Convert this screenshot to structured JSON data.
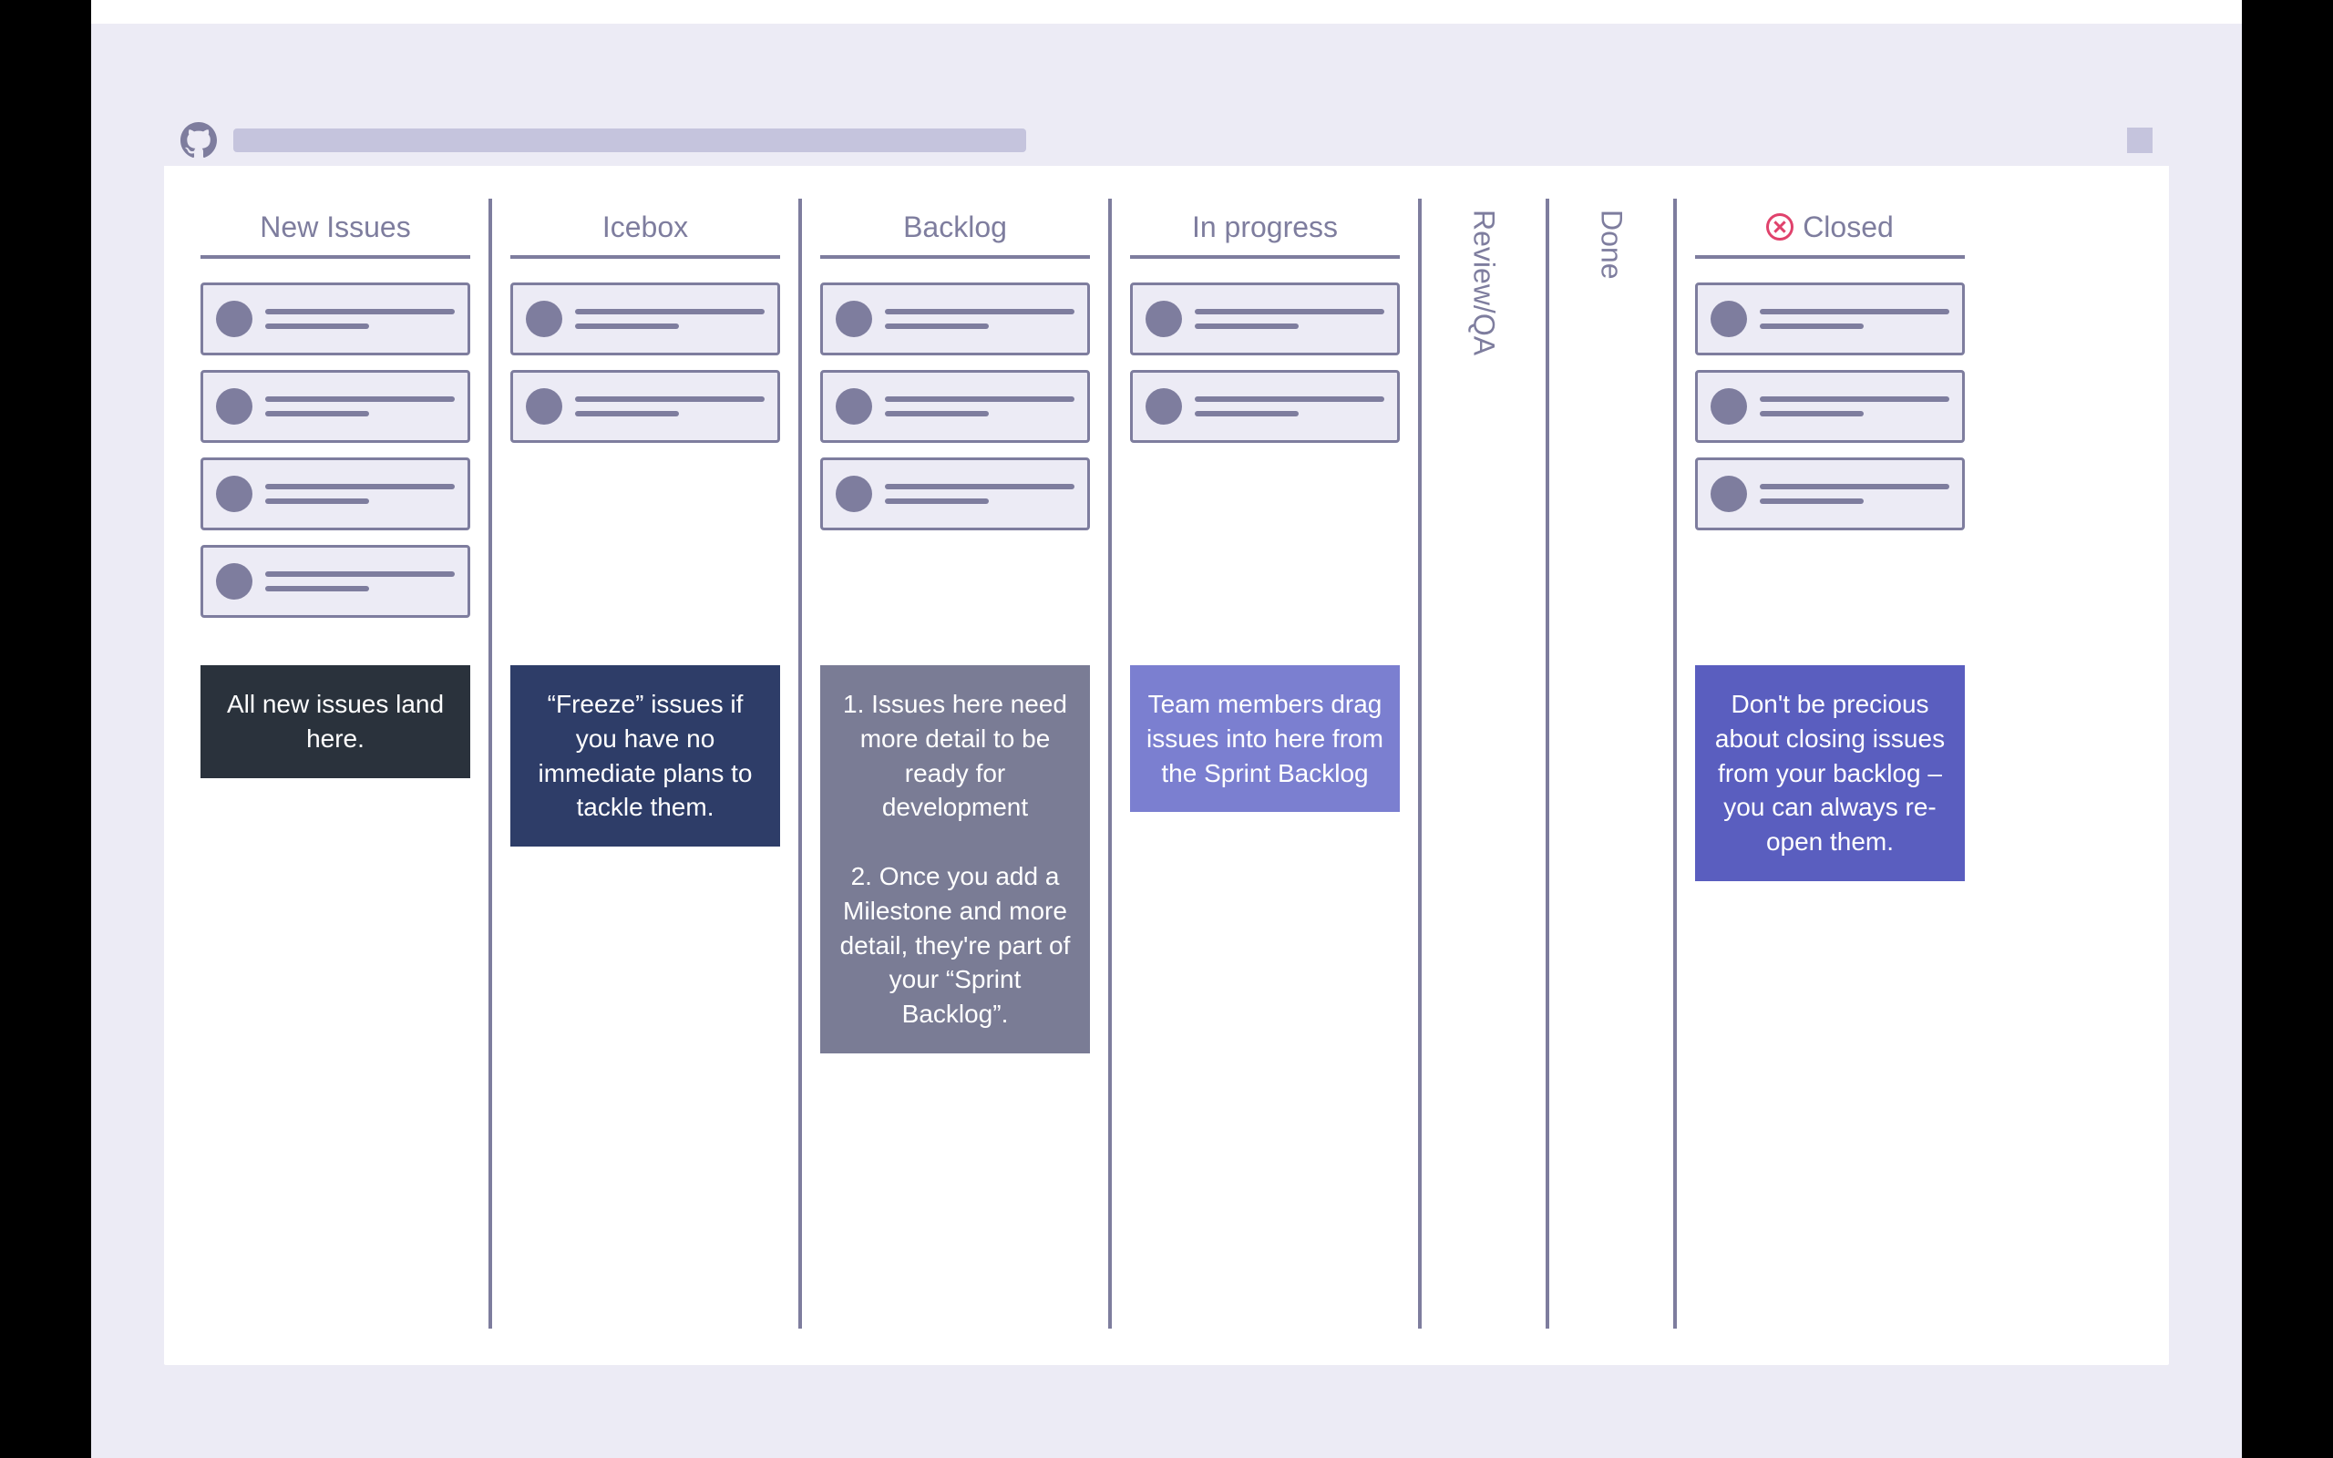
{
  "colors": {
    "page_bg": "#ecebf5",
    "frame": "#000000",
    "window_bg": "#ffffff",
    "header_bg": "#ecebf5",
    "accent_light": "#c5c4dd",
    "line": "#7e7d9e",
    "text": "#7e7d9e",
    "card_bg": "#ecebf5",
    "close_red": "#e0426c"
  },
  "columns": [
    {
      "id": "new-issues",
      "title": "New Issues",
      "card_count": 4,
      "width": "wide",
      "description": "All new issues land here.",
      "desc_bg": "#2a323c"
    },
    {
      "id": "icebox",
      "title": "Icebox",
      "card_count": 2,
      "width": "wide",
      "description": "“Freeze” issues if you have no immediate plans to tackle them.",
      "desc_bg": "#2e3d68"
    },
    {
      "id": "backlog",
      "title": "Backlog",
      "card_count": 3,
      "width": "wide",
      "description": "1. Issues here need more detail to be ready for development\n\n2. Once you add a Milestone and more detail, they're part of your “Sprint Backlog”.",
      "desc_bg": "#7a7c95"
    },
    {
      "id": "in-progress",
      "title": "In progress",
      "card_count": 2,
      "width": "wide",
      "description": "Team members drag issues into here from the Sprint Backlog",
      "desc_bg": "#7b7fd0"
    },
    {
      "id": "review-qa",
      "title": "Review/QA",
      "card_count": 0,
      "width": "narrow",
      "description": null,
      "desc_bg": null
    },
    {
      "id": "done",
      "title": "Done",
      "card_count": 0,
      "width": "narrow",
      "description": null,
      "desc_bg": null
    },
    {
      "id": "closed",
      "title": "Closed",
      "card_count": 3,
      "width": "wide",
      "has_close_icon": true,
      "description": "Don't be precious about closing issues from your backlog – you can always re-open them.",
      "desc_bg": "#5a5ebf"
    }
  ]
}
